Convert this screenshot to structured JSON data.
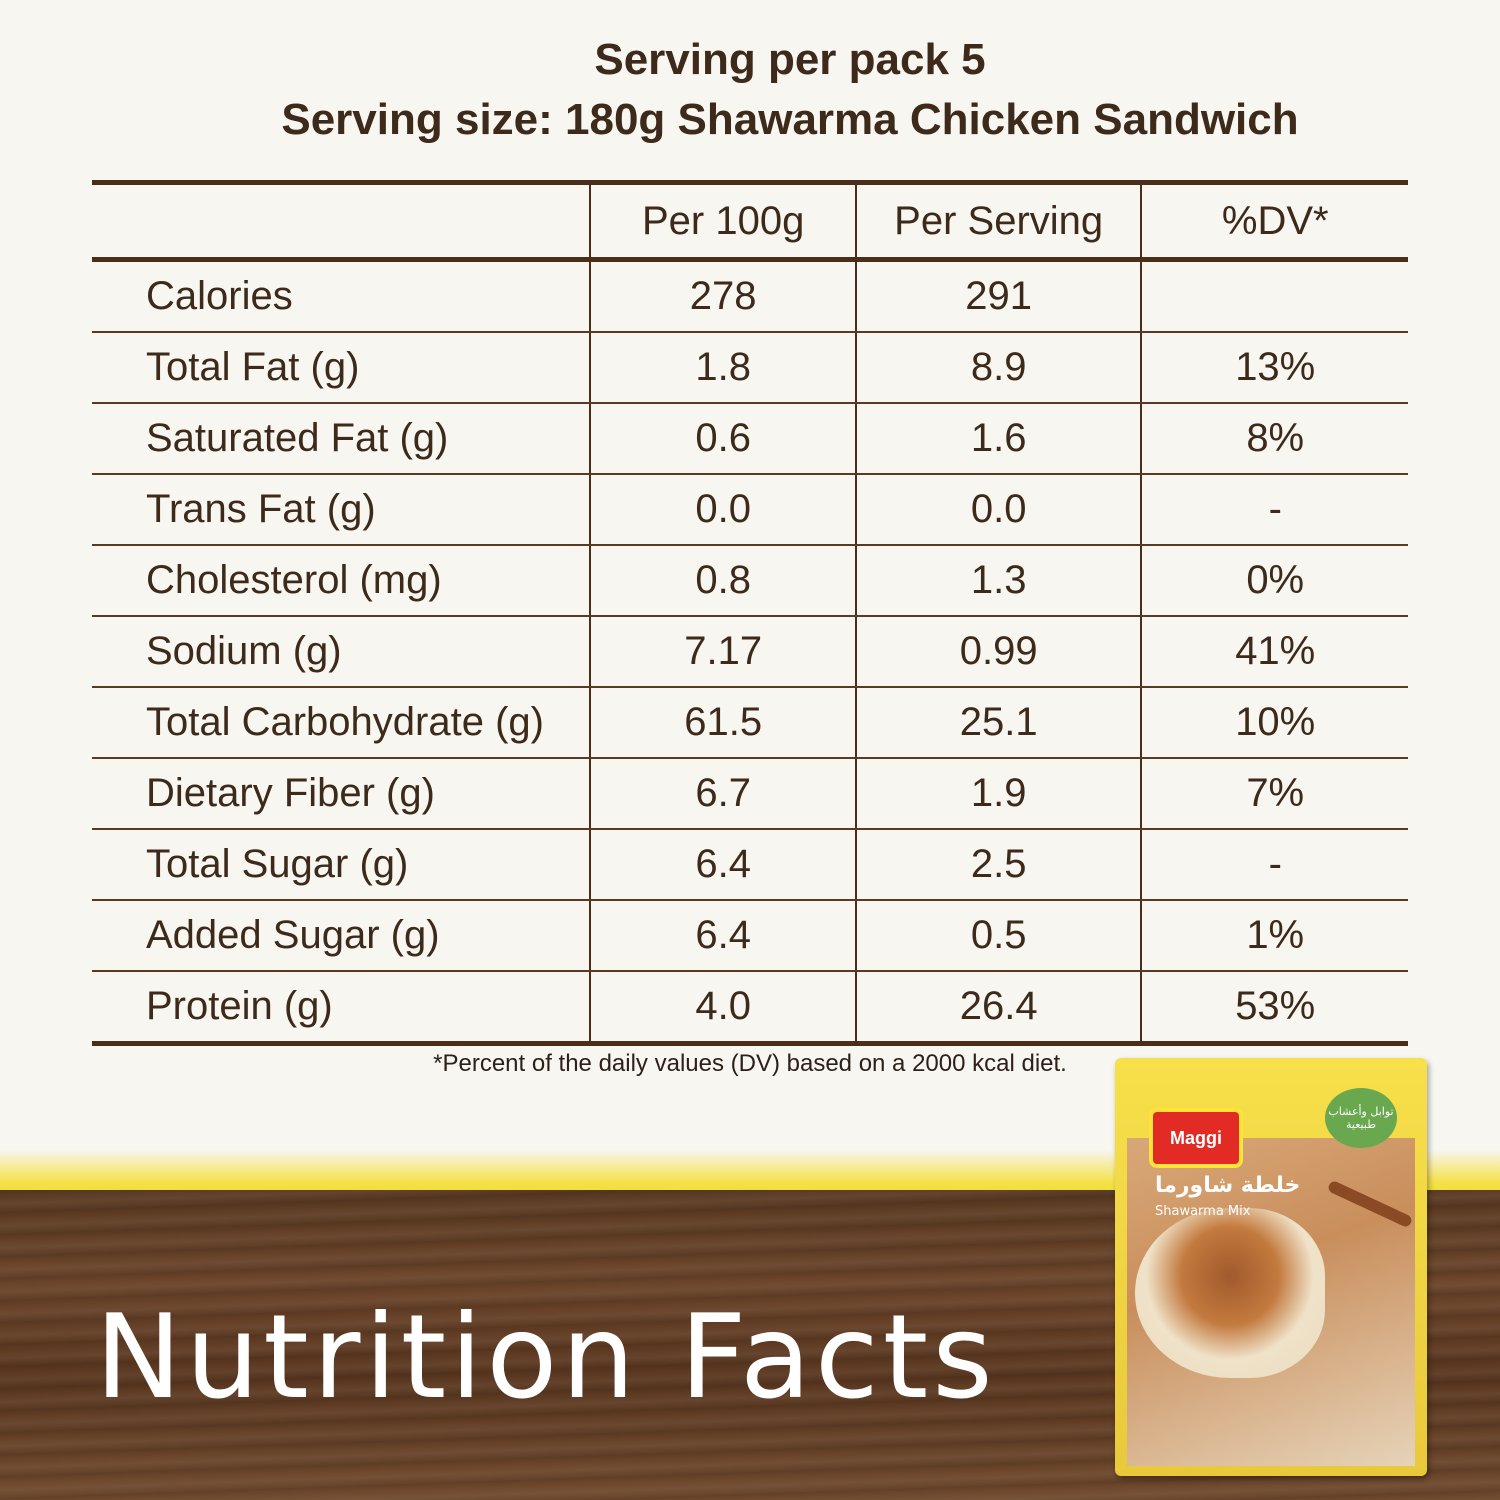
{
  "header": {
    "servings_per_pack": "Serving per pack 5",
    "serving_size": "Serving size: 180g Shawarma Chicken Sandwich"
  },
  "table": {
    "columns": [
      "",
      "Per 100g",
      "Per Serving",
      "%DV*"
    ],
    "rows": [
      {
        "name": "Calories",
        "per100": "278",
        "perServing": "291",
        "dv": ""
      },
      {
        "name": "Total Fat (g)",
        "per100": "1.8",
        "perServing": "8.9",
        "dv": "13%"
      },
      {
        "name": "Saturated Fat (g)",
        "per100": "0.6",
        "perServing": "1.6",
        "dv": "8%"
      },
      {
        "name": "Trans Fat (g)",
        "per100": "0.0",
        "perServing": "0.0",
        "dv": "-"
      },
      {
        "name": "Cholesterol (mg)",
        "per100": "0.8",
        "perServing": "1.3",
        "dv": "0%"
      },
      {
        "name": "Sodium (g)",
        "per100": "7.17",
        "perServing": "0.99",
        "dv": "41%"
      },
      {
        "name": "Total Carbohydrate (g)",
        "per100": "61.5",
        "perServing": "25.1",
        "dv": "10%"
      },
      {
        "name": "Dietary Fiber (g)",
        "per100": "6.7",
        "perServing": "1.9",
        "dv": "7%"
      },
      {
        "name": "Total Sugar (g)",
        "per100": "6.4",
        "perServing": "2.5",
        "dv": "-"
      },
      {
        "name": "Added Sugar (g)",
        "per100": "6.4",
        "perServing": "0.5",
        "dv": "1%"
      },
      {
        "name": "Protein (g)",
        "per100": "4.0",
        "perServing": "26.4",
        "dv": "53%"
      }
    ]
  },
  "footnote": "*Percent of the daily values (DV) based on a 2000 kcal diet.",
  "title": "Nutrition Facts",
  "pack": {
    "brand": "Maggi",
    "arabic_name": "خلطة شاورما",
    "product_name": "Shawarma Mix",
    "badge_text": "توابل وأعشاب طبيعية"
  },
  "colors": {
    "text_brown": "#3d2a1a",
    "wood": "#6b442a",
    "yellow": "#f0d92a"
  }
}
